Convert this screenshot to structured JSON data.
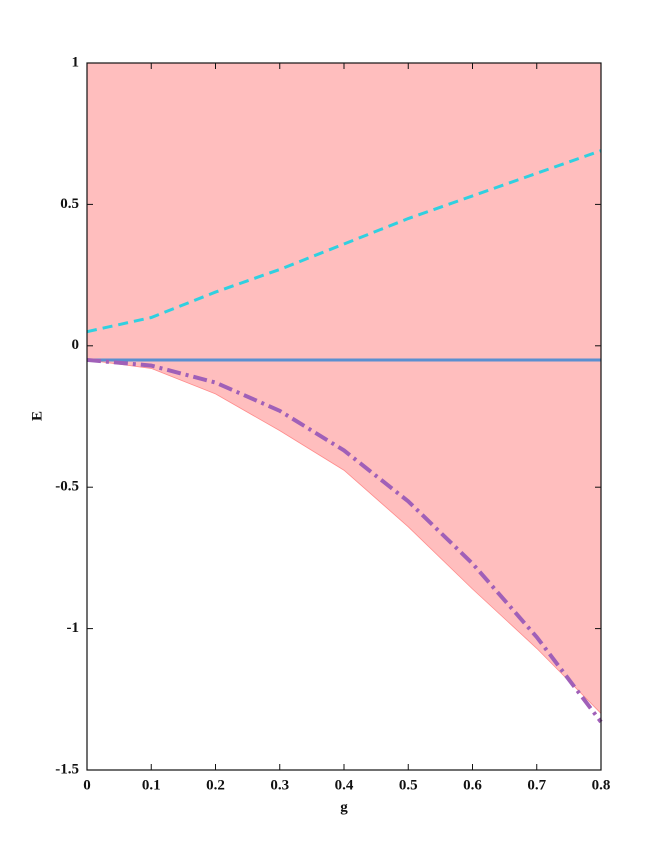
{
  "chart_data": {
    "type": "line",
    "x_label": "g",
    "y_label": "E",
    "xlim": [
      0,
      0.8
    ],
    "ylim": [
      -1.5,
      1
    ],
    "xticks": [
      0,
      0.1,
      0.2,
      0.3,
      0.4,
      0.5,
      0.6,
      0.7,
      0.8
    ],
    "yticks": [
      -1.5,
      -1,
      -0.5,
      0,
      0.5,
      1
    ],
    "x": [
      0,
      0.1,
      0.2,
      0.3,
      0.4,
      0.5,
      0.6,
      0.7,
      0.8
    ],
    "band": {
      "color": "#ffb3b3",
      "values": [
        -0.05,
        -0.08,
        -0.17,
        -0.3,
        -0.44,
        -0.64,
        -0.86,
        -1.07,
        -1.3
      ]
    },
    "series": [
      {
        "color": "#ff8c8c",
        "style": "thin",
        "values": [
          -0.05,
          -0.08,
          -0.17,
          -0.3,
          -0.44,
          -0.64,
          -0.86,
          -1.07,
          -1.3
        ]
      },
      {
        "color": "#5b8fd0",
        "style": "solid",
        "values": [
          -0.05,
          -0.05,
          -0.05,
          -0.05,
          -0.05,
          -0.05,
          -0.05,
          -0.05,
          -0.05
        ]
      },
      {
        "color": "#30d0e0",
        "style": "dash",
        "values": [
          0.05,
          0.1,
          0.19,
          0.27,
          0.36,
          0.45,
          0.53,
          0.61,
          0.69
        ]
      },
      {
        "color": "#a060b8",
        "style": "dashdot",
        "values": [
          -0.05,
          -0.07,
          -0.13,
          -0.23,
          -0.37,
          -0.55,
          -0.77,
          -1.03,
          -1.33
        ]
      }
    ]
  }
}
